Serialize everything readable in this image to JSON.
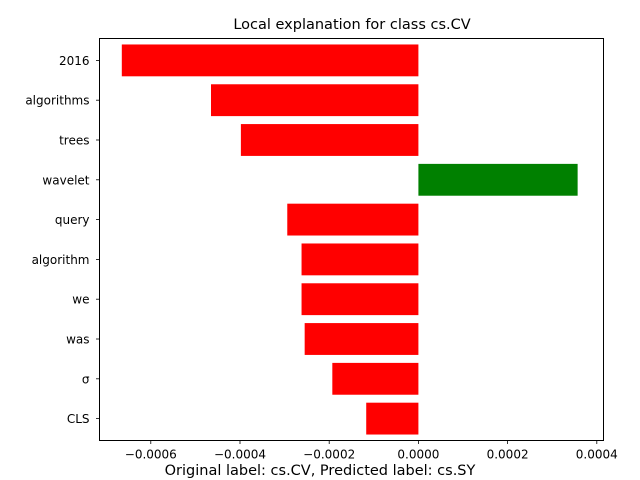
{
  "chart_data": {
    "type": "bar",
    "orientation": "horizontal",
    "title": "Local explanation for class cs.CV",
    "caption": "Original label: cs.CV, Predicted label: cs.SY",
    "categories": [
      "2016",
      "algorithms",
      "trees",
      "wavelet",
      "query",
      "algorithm",
      "we",
      "was",
      "σ",
      "CLS"
    ],
    "values": [
      -0.000665,
      -0.000465,
      -0.000398,
      0.000357,
      -0.000294,
      -0.000262,
      -0.000262,
      -0.000255,
      -0.000193,
      -0.000117
    ],
    "xlim": [
      -0.000715,
      0.000415
    ],
    "xticks": [
      -0.0006,
      -0.0004,
      -0.0002,
      0.0,
      0.0002,
      0.0004
    ],
    "xtick_labels": [
      "−0.0006",
      "−0.0004",
      "−0.0002",
      "0.0000",
      "0.0002",
      "0.0004"
    ],
    "positive_color": "#008000",
    "negative_color": "#ff0000",
    "grid": false
  }
}
